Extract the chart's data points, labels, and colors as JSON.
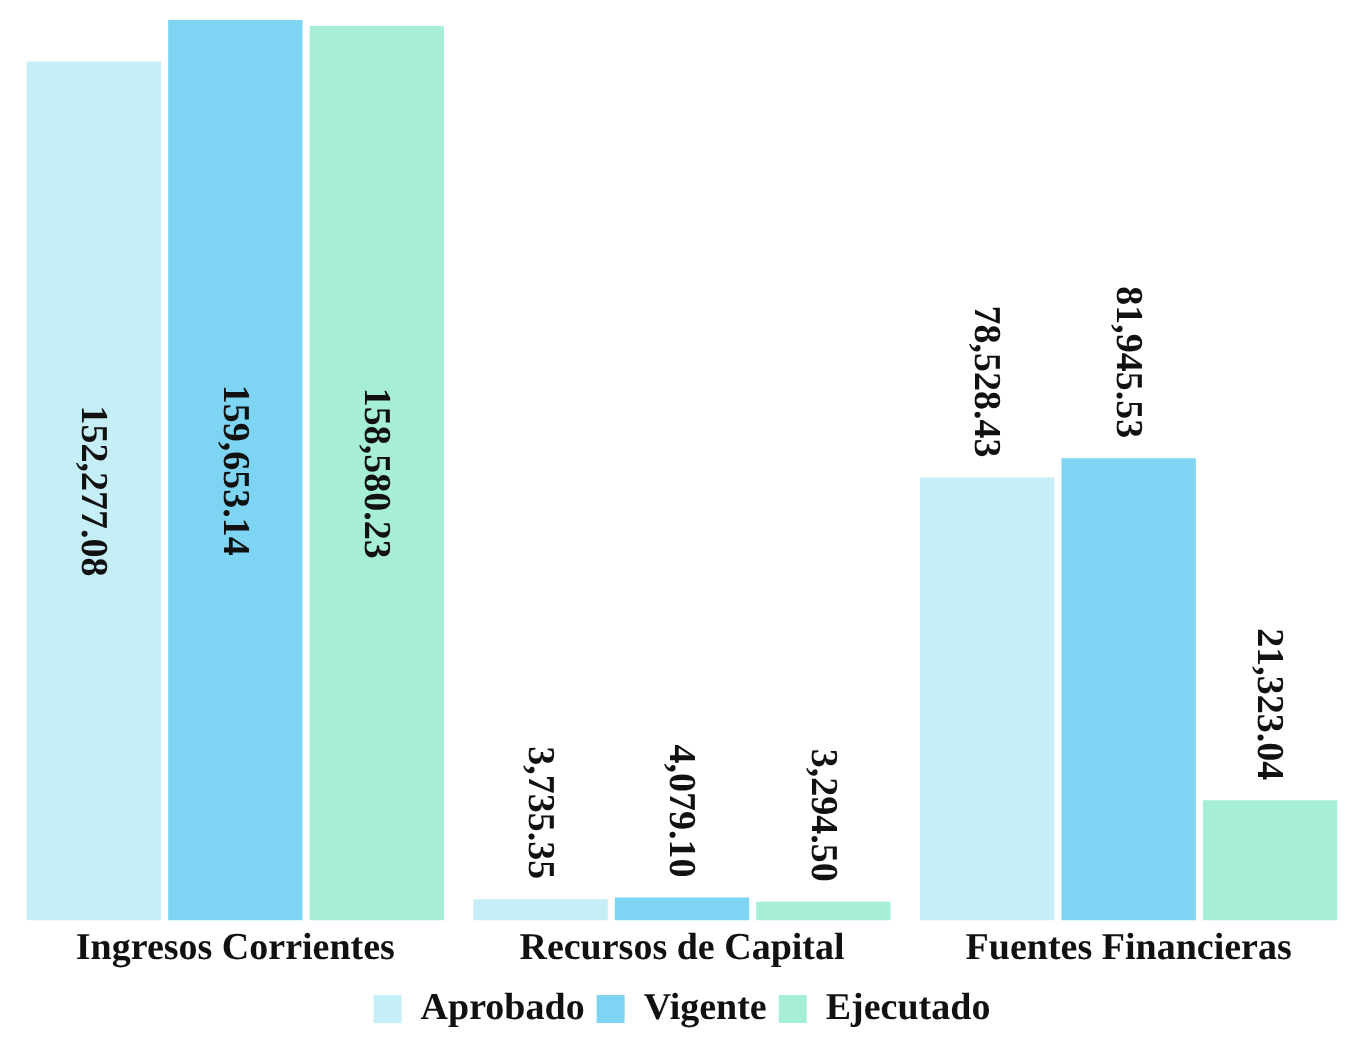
{
  "chart_data": {
    "type": "bar",
    "categories": [
      "Ingresos Corrientes",
      "Recursos de Capital",
      "Fuentes Financieras"
    ],
    "series": [
      {
        "name": "Aprobado",
        "color": "#c6eef6",
        "values": [
          152277.08,
          3735.35,
          78528.43
        ],
        "value_labels": [
          "152,277.08",
          "3,735.35",
          "78,528.43"
        ]
      },
      {
        "name": "Vigente",
        "color": "#7dd5f3",
        "values": [
          159653.14,
          4079.1,
          81945.53
        ],
        "value_labels": [
          "159,653.14",
          "4,079.10",
          "81,945.53"
        ]
      },
      {
        "name": "Ejecutado",
        "color": "#a6efd5",
        "values": [
          158580.23,
          3294.5,
          21323.04
        ],
        "value_labels": [
          "158,580.23",
          "3,294.50",
          "21,323.04"
        ]
      }
    ],
    "legend": "bottom",
    "grid": false
  }
}
